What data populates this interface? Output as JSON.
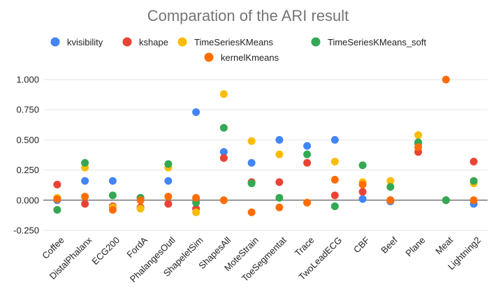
{
  "chart_data": {
    "type": "scatter",
    "title": "Comparation of the ARI result",
    "xlabel": "",
    "ylabel": "",
    "ylim": [
      -0.25,
      1.0
    ],
    "yticks": [
      -0.25,
      0.0,
      0.25,
      0.5,
      0.75,
      1.0
    ],
    "ytick_labels": [
      "-0.250",
      "0.000",
      "0.250",
      "0.500",
      "0.750",
      "1.000"
    ],
    "grid": true,
    "legend_position": "top",
    "categories": [
      "Coffee",
      "DistalPhalanx",
      "ECG200",
      "FordA",
      "PhalangesOutl",
      "ShapeletSim",
      "ShapesAll",
      "MoteStrain",
      "ToeSegmentat",
      "Trace",
      "TwoLeadECG",
      "CBF",
      "Beef",
      "Plane",
      "Meat",
      "Lightning2"
    ],
    "series": [
      {
        "name": "kvisibility",
        "color": "#4285f4",
        "values": [
          0.0,
          0.16,
          0.16,
          0.02,
          0.16,
          0.73,
          0.4,
          0.31,
          0.5,
          0.45,
          0.5,
          0.01,
          -0.01,
          0.47,
          0.0,
          -0.03
        ]
      },
      {
        "name": "kshape",
        "color": "#ea4335",
        "values": [
          0.13,
          -0.03,
          -0.05,
          -0.06,
          -0.03,
          -0.07,
          0.35,
          0.15,
          0.15,
          0.31,
          0.04,
          0.07,
          0.0,
          0.4,
          0.0,
          0.32
        ]
      },
      {
        "name": "TimeSeriesKMeans",
        "color": "#fbbc04",
        "values": [
          0.02,
          0.27,
          -0.06,
          -0.07,
          0.27,
          -0.1,
          0.88,
          0.49,
          0.38,
          -0.02,
          0.32,
          0.15,
          0.16,
          0.54,
          0.0,
          0.14
        ]
      },
      {
        "name": "TimeSeriesKMeans_soft",
        "color": "#34a853",
        "values": [
          -0.08,
          0.31,
          0.04,
          0.02,
          0.3,
          -0.02,
          0.6,
          0.14,
          0.02,
          0.38,
          -0.05,
          0.29,
          0.11,
          0.48,
          0.0,
          0.16
        ]
      },
      {
        "name": "kernelKmeans",
        "color": "#ff6d01",
        "values": [
          0.01,
          0.03,
          -0.08,
          0.0,
          0.03,
          0.02,
          0.0,
          -0.1,
          -0.06,
          -0.02,
          0.17,
          0.13,
          0.0,
          0.44,
          1.0,
          0.0
        ]
      }
    ]
  }
}
